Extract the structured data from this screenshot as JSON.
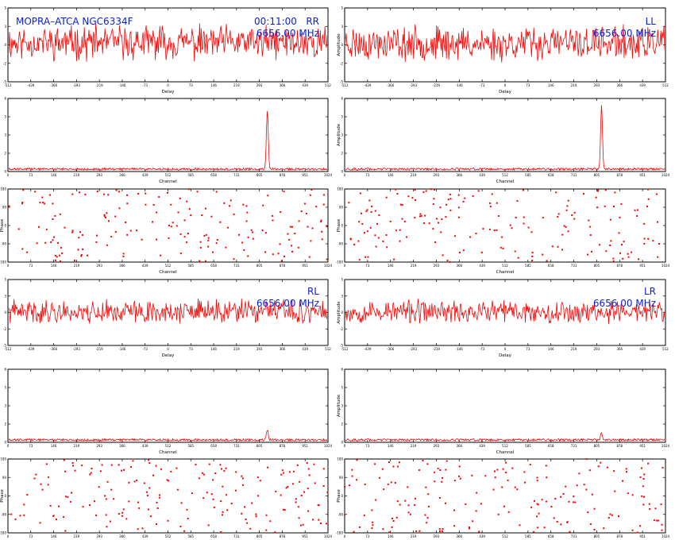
{
  "header": {
    "source": "MOPRA–ATCA NGC6334F",
    "time": "00:11:00"
  },
  "colors": {
    "trace": "#ff0000",
    "annotation": "#0a1ed8",
    "axes": "#000000"
  },
  "panel_labels": {
    "pol_rr": "RR",
    "pol_ll": "LL",
    "pol_rl": "RL",
    "pol_lr": "LR",
    "frequency": "6656.00 MHz"
  },
  "chart_data": [
    {
      "id": "rr_delay",
      "type": "line",
      "polarization": "RR",
      "frequency": "6656.00 MHz",
      "xlabel": "Delay",
      "ylabel": "",
      "xlim": [
        -512,
        512
      ],
      "ylim": [
        -5,
        5
      ],
      "noise": {
        "center": 0.3,
        "amplitude": 1.7,
        "seed": 11
      }
    },
    {
      "id": "ll_delay",
      "type": "line",
      "polarization": "LL",
      "frequency": "6656.00 MHz",
      "xlabel": "Delay",
      "ylabel": "Amplitude",
      "xlim": [
        -512,
        512
      ],
      "ylim": [
        -5,
        5
      ],
      "noise": {
        "center": 0.2,
        "amplitude": 1.7,
        "seed": 23
      }
    },
    {
      "id": "rr_amp",
      "type": "line",
      "xlabel": "Channel",
      "ylabel": "",
      "xlim": [
        0,
        1024
      ],
      "ylim": [
        0,
        6
      ],
      "baseline": 0.2,
      "peak": {
        "channel": 830,
        "value": 5.0
      }
    },
    {
      "id": "ll_amp",
      "type": "line",
      "xlabel": "Channel",
      "ylabel": "Amplitude",
      "xlim": [
        0,
        1024
      ],
      "ylim": [
        0,
        6
      ],
      "baseline": 0.2,
      "peak": {
        "channel": 820,
        "value": 5.5
      }
    },
    {
      "id": "rr_phase",
      "type": "scatter",
      "xlabel": "Channel",
      "ylabel": "Phase",
      "xlim": [
        0,
        1024
      ],
      "ylim": [
        -180,
        180
      ],
      "points": 180,
      "seed": 31
    },
    {
      "id": "ll_phase",
      "type": "scatter",
      "xlabel": "Channel",
      "ylabel": "Phase",
      "xlim": [
        0,
        1024
      ],
      "ylim": [
        -180,
        180
      ],
      "points": 180,
      "seed": 37
    },
    {
      "id": "rl_delay",
      "type": "line",
      "polarization": "RL",
      "frequency": "6656.00 MHz",
      "xlabel": "Delay",
      "ylabel": "",
      "xlim": [
        -512,
        512
      ],
      "ylim": [
        -5,
        5
      ],
      "noise": {
        "center": 0.1,
        "amplitude": 1.3,
        "seed": 41
      }
    },
    {
      "id": "lr_delay",
      "type": "line",
      "polarization": "LR",
      "frequency": "6656.00 MHz",
      "xlabel": "Delay",
      "ylabel": "Amplitude",
      "xlim": [
        -512,
        512
      ],
      "ylim": [
        -5,
        5
      ],
      "noise": {
        "center": 0.1,
        "amplitude": 1.3,
        "seed": 53
      }
    },
    {
      "id": "rl_amp",
      "type": "line",
      "xlabel": "Channel",
      "ylabel": "",
      "xlim": [
        0,
        1024
      ],
      "ylim": [
        0,
        6
      ],
      "baseline": 0.2,
      "peak": {
        "channel": 830,
        "value": 1.0
      }
    },
    {
      "id": "lr_amp",
      "type": "line",
      "xlabel": "Channel",
      "ylabel": "Amplitude",
      "xlim": [
        0,
        1024
      ],
      "ylim": [
        0,
        6
      ],
      "baseline": 0.2,
      "peak": {
        "channel": 820,
        "value": 0.8
      }
    },
    {
      "id": "rl_phase",
      "type": "scatter",
      "xlabel": "Channel",
      "ylabel": "Phase",
      "xlim": [
        0,
        1024
      ],
      "ylim": [
        -180,
        180
      ],
      "points": 180,
      "seed": 61
    },
    {
      "id": "lr_phase",
      "type": "scatter",
      "xlabel": "Channel",
      "ylabel": "Phase",
      "xlim": [
        0,
        1024
      ],
      "ylim": [
        -180,
        180
      ],
      "points": 180,
      "seed": 67
    }
  ]
}
